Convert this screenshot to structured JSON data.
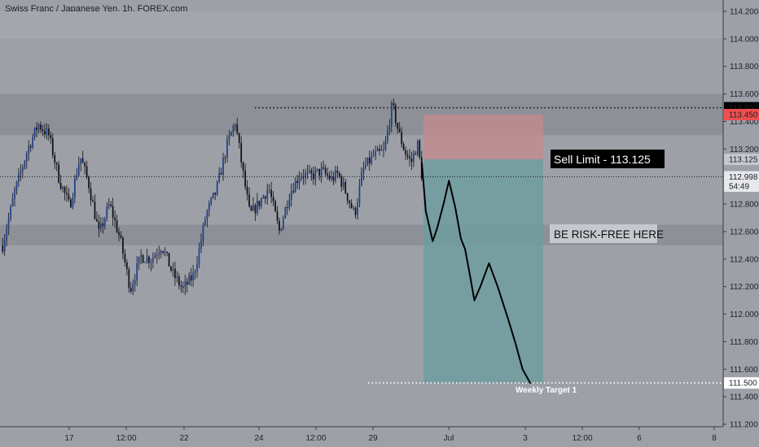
{
  "chart_data": {
    "type": "candlestick",
    "title": "Swiss Franc / Japanese Yen, 1h, FOREX.com",
    "symbol": "CHFJPY",
    "interval": "1h",
    "source": "FOREX.com",
    "y_axis": {
      "range": [
        111.2,
        114.2
      ],
      "ticks": [
        "114.200",
        "114.000",
        "113.800",
        "113.600",
        "113.400",
        "113.200",
        "113.000",
        "112.800",
        "112.600",
        "112.400",
        "112.200",
        "112.000",
        "111.800",
        "111.600",
        "111.400",
        "111.200"
      ]
    },
    "x_axis": {
      "ticks": [
        "17",
        "12:00",
        "22",
        "24",
        "12:00",
        "29",
        "Jul",
        "3",
        "12:00",
        "6",
        "8"
      ]
    },
    "price_tags": [
      {
        "label": "113.500",
        "value": 113.5,
        "bg": "#000000",
        "fg": "#ffffff"
      },
      {
        "label": "113.450",
        "value": 113.45,
        "bg": "#ef4f4f",
        "fg": "#ffffff"
      },
      {
        "label": "113.125",
        "value": 113.125,
        "bg": "#c6c8ce",
        "fg": "#1e2028"
      },
      {
        "label": "112.998",
        "value": 112.998,
        "bg": "#e7e8ec",
        "fg": "#1e2028"
      },
      {
        "label": "54:49",
        "value": 112.93,
        "bg": "#e7e8ec",
        "fg": "#1e2028"
      },
      {
        "label": "111.500",
        "value": 111.5,
        "bg": "#ffffff",
        "fg": "#1e2028"
      }
    ],
    "zones": [
      {
        "from": 113.6,
        "to": 113.3,
        "color": "#8e9098"
      },
      {
        "from": 112.65,
        "to": 112.5,
        "color": "#8e9098"
      },
      {
        "from": 114.2,
        "to": 114.0,
        "color": "#a4a6ae"
      }
    ],
    "levels": {
      "resistance_line": 113.5,
      "current_price": 112.998,
      "weekly_target": 111.5
    },
    "position": {
      "type": "short",
      "entry": 113.125,
      "stop": 113.45,
      "target": 111.5
    },
    "annotations": {
      "sell_limit": "Sell Limit - 113.125",
      "risk_free": "BE RISK-FREE HERE",
      "weekly_target": "Weekly Target 1"
    },
    "projection": [
      {
        "t": 0.0,
        "p": 113.1
      },
      {
        "t": 0.036,
        "p": 112.75
      },
      {
        "t": 0.1,
        "p": 112.53
      },
      {
        "t": 0.14,
        "p": 112.62
      },
      {
        "t": 0.2,
        "p": 112.8
      },
      {
        "t": 0.25,
        "p": 112.97
      },
      {
        "t": 0.31,
        "p": 112.77
      },
      {
        "t": 0.36,
        "p": 112.55
      },
      {
        "t": 0.4,
        "p": 112.47
      },
      {
        "t": 0.44,
        "p": 112.3
      },
      {
        "t": 0.485,
        "p": 112.1
      },
      {
        "t": 0.54,
        "p": 112.2
      },
      {
        "t": 0.62,
        "p": 112.37
      },
      {
        "t": 0.7,
        "p": 112.2
      },
      {
        "t": 0.79,
        "p": 111.98
      },
      {
        "t": 0.86,
        "p": 111.8
      },
      {
        "t": 0.93,
        "p": 111.6
      },
      {
        "t": 1.0,
        "p": 111.5
      }
    ],
    "price_path": [
      {
        "t": 0.0,
        "p": 112.5
      },
      {
        "t": 0.03,
        "p": 112.9
      },
      {
        "t": 0.06,
        "p": 113.2
      },
      {
        "t": 0.085,
        "p": 113.38
      },
      {
        "t": 0.11,
        "p": 113.3
      },
      {
        "t": 0.135,
        "p": 112.98
      },
      {
        "t": 0.16,
        "p": 112.78
      },
      {
        "t": 0.185,
        "p": 113.15
      },
      {
        "t": 0.205,
        "p": 112.95
      },
      {
        "t": 0.23,
        "p": 112.58
      },
      {
        "t": 0.255,
        "p": 112.8
      },
      {
        "t": 0.28,
        "p": 112.55
      },
      {
        "t": 0.305,
        "p": 112.18
      },
      {
        "t": 0.33,
        "p": 112.42
      },
      {
        "t": 0.355,
        "p": 112.4
      },
      {
        "t": 0.38,
        "p": 112.5
      },
      {
        "t": 0.405,
        "p": 112.3
      },
      {
        "t": 0.43,
        "p": 112.18
      },
      {
        "t": 0.455,
        "p": 112.28
      },
      {
        "t": 0.47,
        "p": 112.48
      },
      {
        "t": 0.485,
        "p": 112.72
      },
      {
        "t": 0.51,
        "p": 112.9
      },
      {
        "t": 0.535,
        "p": 113.22
      },
      {
        "t": 0.555,
        "p": 113.4
      },
      {
        "t": 0.575,
        "p": 113.0
      },
      {
        "t": 0.59,
        "p": 112.72
      },
      {
        "t": 0.61,
        "p": 112.8
      },
      {
        "t": 0.635,
        "p": 112.92
      },
      {
        "t": 0.66,
        "p": 112.6
      },
      {
        "t": 0.685,
        "p": 112.88
      },
      {
        "t": 0.71,
        "p": 113.02
      },
      {
        "t": 0.735,
        "p": 113.0
      },
      {
        "t": 0.76,
        "p": 113.04
      },
      {
        "t": 0.785,
        "p": 112.98
      },
      {
        "t": 0.8,
        "p": 113.02
      },
      {
        "t": 0.82,
        "p": 112.88
      },
      {
        "t": 0.84,
        "p": 112.72
      },
      {
        "t": 0.86,
        "p": 113.05
      },
      {
        "t": 0.885,
        "p": 113.15
      },
      {
        "t": 0.91,
        "p": 113.18
      },
      {
        "t": 0.93,
        "p": 113.52
      },
      {
        "t": 0.945,
        "p": 113.32
      },
      {
        "t": 0.96,
        "p": 113.18
      },
      {
        "t": 0.975,
        "p": 113.1
      },
      {
        "t": 0.99,
        "p": 113.24
      },
      {
        "t": 1.0,
        "p": 113.02
      }
    ]
  }
}
